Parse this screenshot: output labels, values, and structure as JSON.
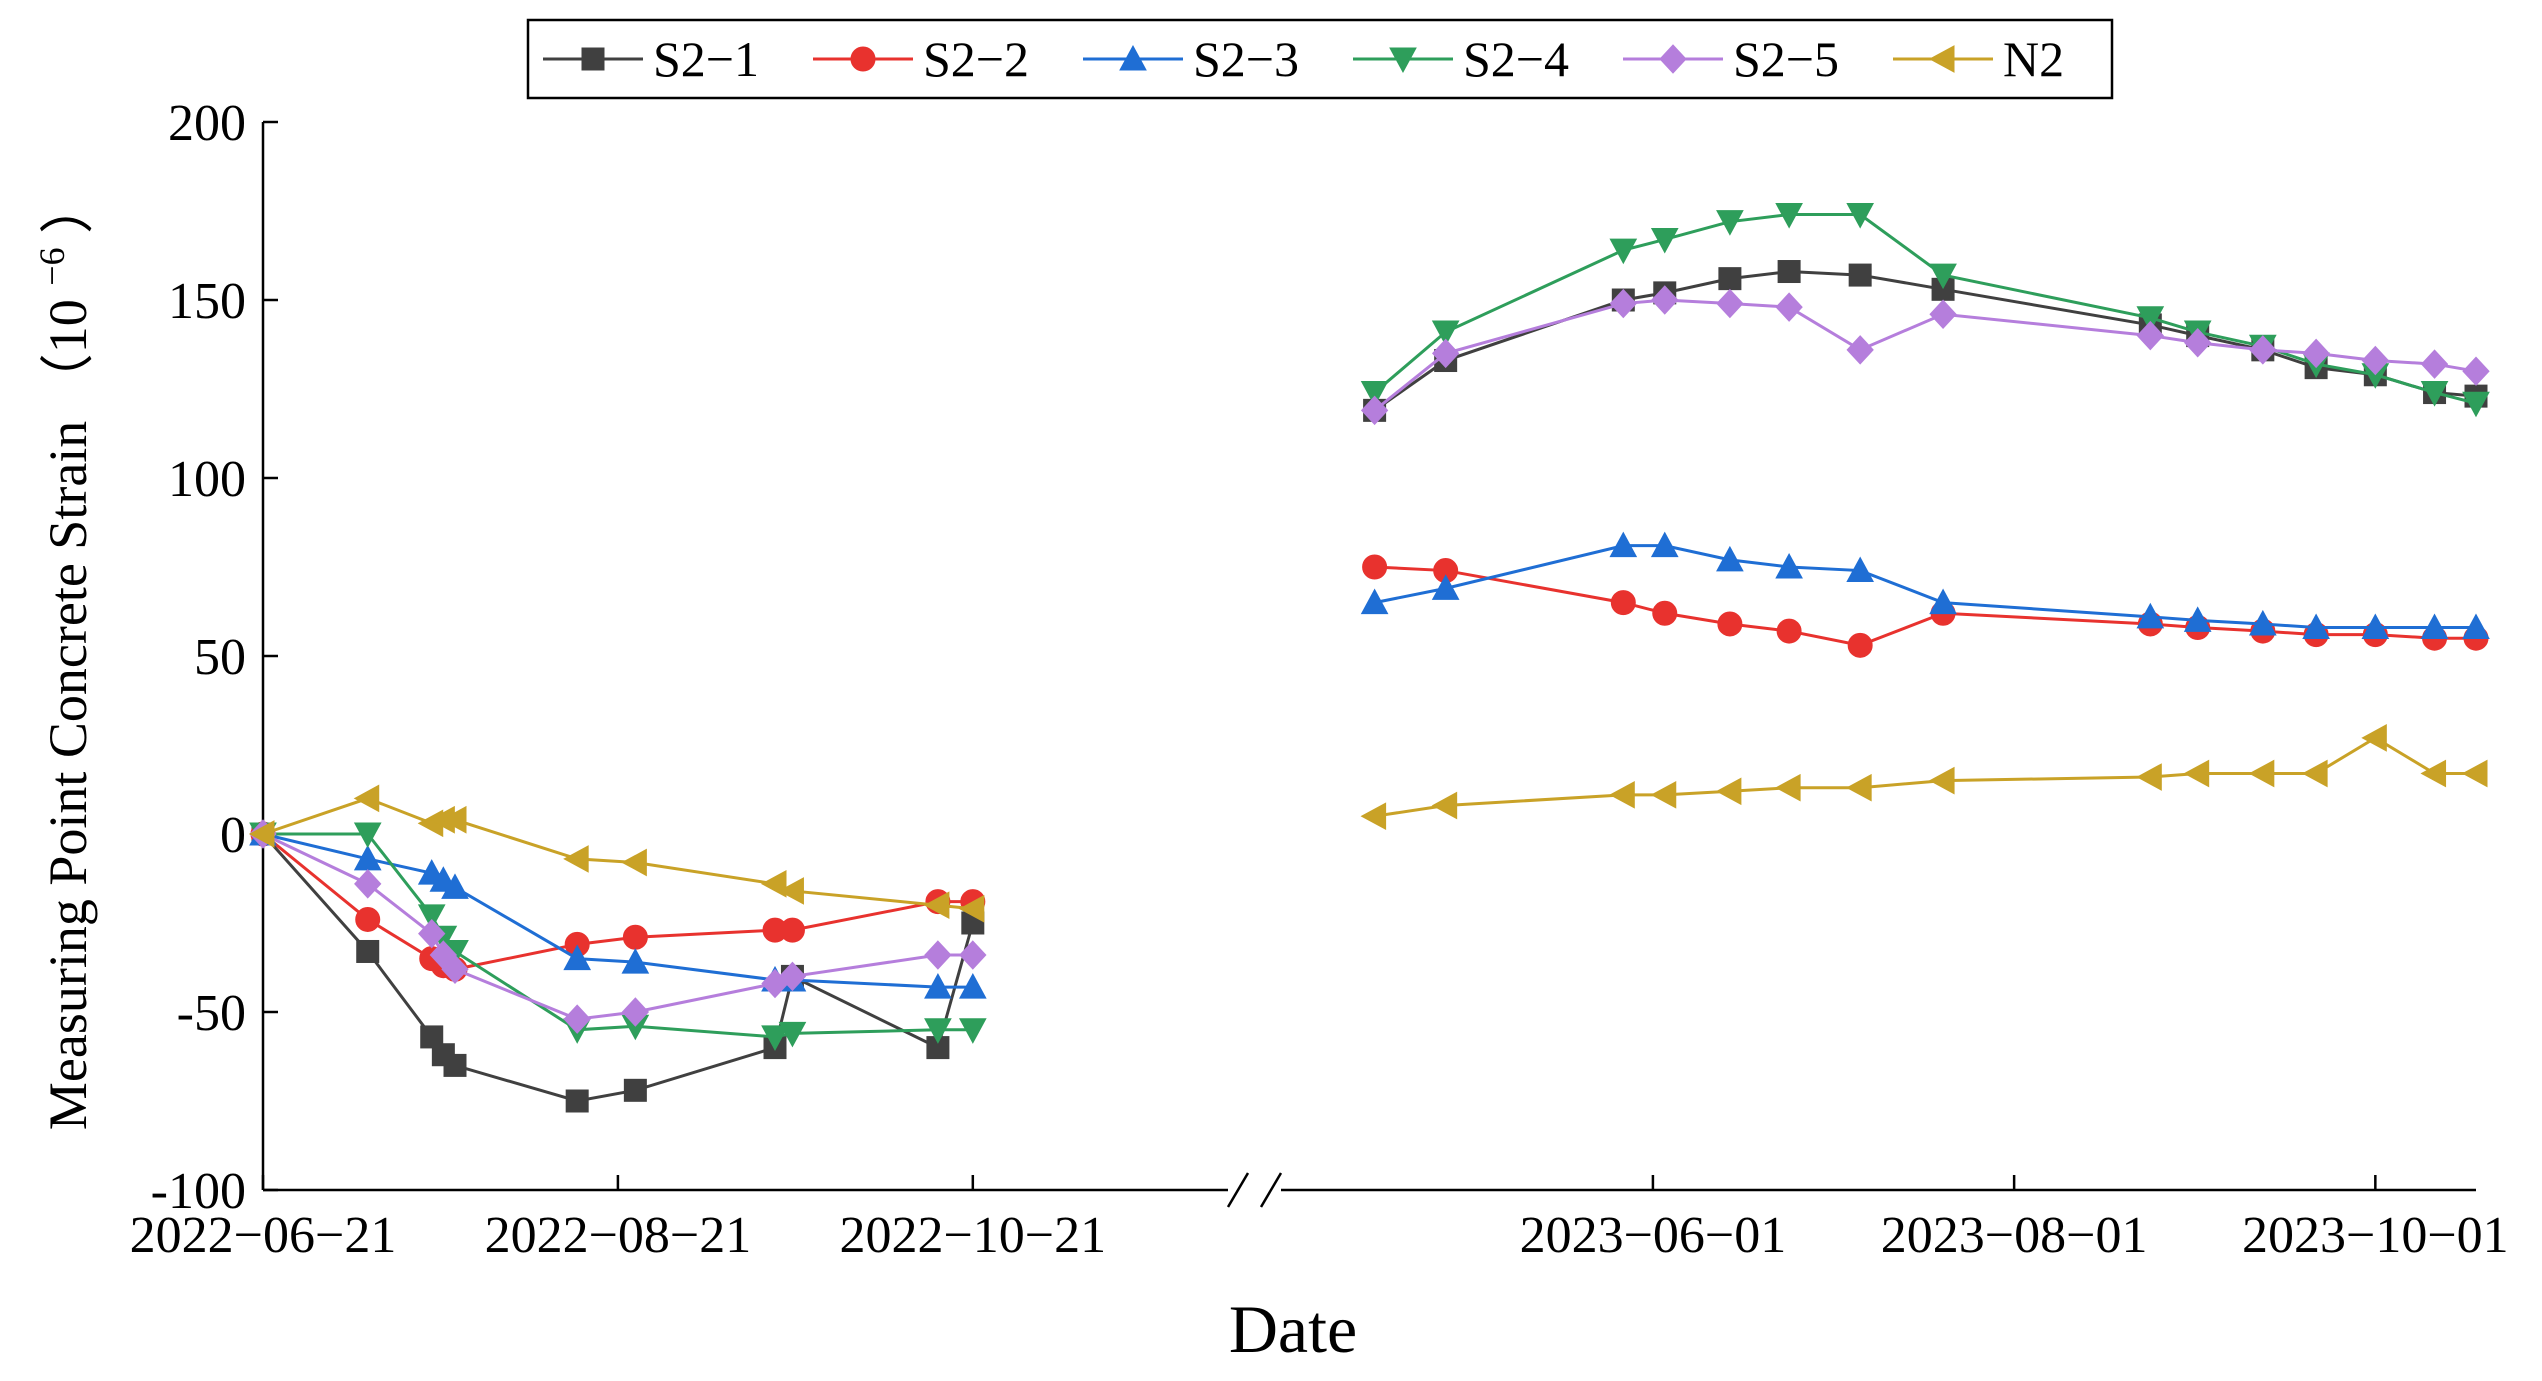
{
  "chart_data": {
    "type": "line",
    "title": "",
    "xlabel": "Date",
    "ylabel_main": "Measuring Point Concrete Strain",
    "ylabel_unit_open": "（10",
    "ylabel_unit_exp": "−6",
    "ylabel_unit_close": "）",
    "ylim": [
      -100,
      200
    ],
    "yticks": [
      -100,
      -50,
      0,
      50,
      100,
      150,
      200
    ],
    "grid": false,
    "legend_position": "top",
    "broken_x_axis": true,
    "segments": [
      {
        "start": "2022-06-21",
        "end": "2022-10-31",
        "ticks": [
          "2022-06-21",
          "2022-08-21",
          "2022-10-21"
        ]
      },
      {
        "start": "2023-04-10",
        "end": "2023-10-18",
        "ticks": [
          "2023-06-01",
          "2023-08-01",
          "2023-10-01"
        ]
      }
    ],
    "tick_labels": [
      "2022−06−21",
      "2022−08−21",
      "2022−10−21",
      "2023−06−01",
      "2023−08−01",
      "2023−10−01"
    ],
    "dates1": [
      "2022-06-21",
      "2022-07-09",
      "2022-07-20",
      "2022-07-22",
      "2022-07-24",
      "2022-08-14",
      "2022-08-24",
      "2022-09-17",
      "2022-09-20",
      "2022-10-15",
      "2022-10-21"
    ],
    "dates2": [
      "2023-04-15",
      "2023-04-27",
      "2023-05-27",
      "2023-06-03",
      "2023-06-14",
      "2023-06-24",
      "2023-07-06",
      "2023-07-20",
      "2023-08-24",
      "2023-09-01",
      "2023-09-12",
      "2023-09-21",
      "2023-10-01",
      "2023-10-11",
      "2023-10-18"
    ],
    "series": [
      {
        "name": "S2−1",
        "color": "#404040",
        "marker": "square",
        "values1": [
          0,
          -33,
          -57,
          -62,
          -65,
          -75,
          -72,
          -60,
          -40,
          -60,
          -25
        ],
        "values2": [
          119,
          133,
          150,
          152,
          156,
          158,
          157,
          153,
          143,
          140,
          136,
          131,
          129,
          124,
          123
        ]
      },
      {
        "name": "S2−2",
        "color": "#E8322E",
        "marker": "circle",
        "values1": [
          0,
          -24,
          -35,
          -37,
          -38,
          -31,
          -29,
          -27,
          -27,
          -19,
          -19
        ],
        "values2": [
          75,
          74,
          65,
          62,
          59,
          57,
          53,
          62,
          59,
          58,
          57,
          56,
          56,
          55,
          55
        ]
      },
      {
        "name": "S2−3",
        "color": "#1F6ED4",
        "marker": "triangle-up",
        "values1": [
          0,
          -7,
          -11,
          -13,
          -15,
          -35,
          -36,
          -41,
          -41,
          -43,
          -43
        ],
        "values2": [
          65,
          69,
          81,
          81,
          77,
          75,
          74,
          65,
          61,
          60,
          59,
          58,
          58,
          58,
          58
        ]
      },
      {
        "name": "S2−4",
        "color": "#2E9E5B",
        "marker": "triangle-down",
        "values1": [
          0,
          0,
          -23,
          -29,
          -33,
          -55,
          -54,
          -57,
          -56,
          -55,
          -55
        ],
        "values2": [
          124,
          141,
          164,
          167,
          172,
          174,
          174,
          157,
          145,
          141,
          137,
          132,
          129,
          124,
          121
        ]
      },
      {
        "name": "S2−5",
        "color": "#B57EDC",
        "marker": "diamond",
        "values1": [
          0,
          -14,
          -28,
          -34,
          -38,
          -52,
          -50,
          -42,
          -40,
          -34,
          -34
        ],
        "values2": [
          119,
          135,
          149,
          150,
          149,
          148,
          136,
          146,
          140,
          138,
          136,
          135,
          133,
          132,
          130
        ]
      },
      {
        "name": "N2",
        "color": "#C9A227",
        "marker": "triangle-left",
        "values1": [
          0,
          10,
          3,
          4,
          4,
          -7,
          -8,
          -14,
          -16,
          -20,
          -21
        ],
        "values2": [
          5,
          8,
          11,
          11,
          12,
          13,
          13,
          15,
          16,
          17,
          17,
          17,
          27,
          17,
          17
        ]
      }
    ]
  }
}
